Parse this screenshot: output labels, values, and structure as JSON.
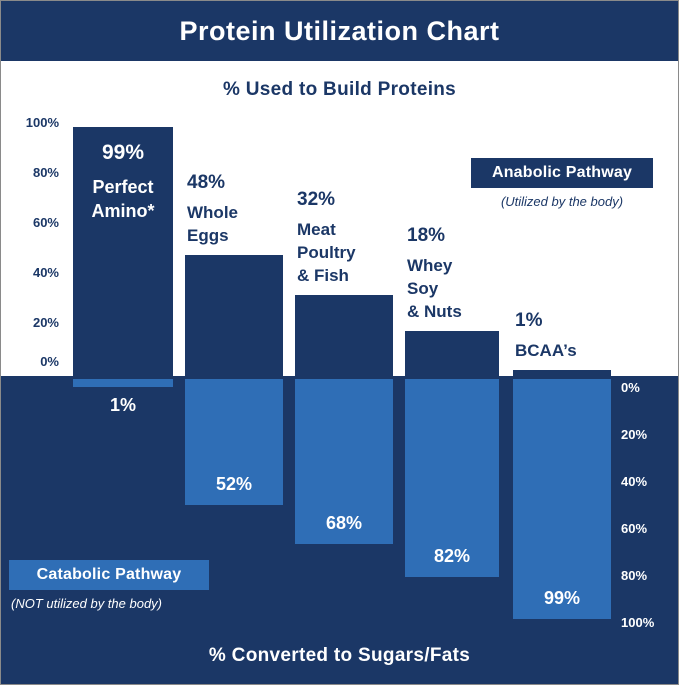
{
  "title": "Protein Utilization Chart",
  "upper_title": "% Used to Build Proteins",
  "lower_title": "% Converted to Sugars/Fats",
  "anabolic_badge": {
    "label": "Anabolic Pathway",
    "note": "(Utilized by the body)"
  },
  "catabolic_badge": {
    "label": "Catabolic Pathway",
    "note": "(NOT utilized by the body)"
  },
  "colors": {
    "navy": "#1b3766",
    "blue": "#2f6eb6",
    "white": "#ffffff"
  },
  "axes": {
    "upper_ticks": [
      "100%",
      "80%",
      "60%",
      "40%",
      "20%",
      "0%"
    ],
    "lower_ticks": [
      "0%",
      "20%",
      "40%",
      "60%",
      "80%",
      "100%"
    ]
  },
  "chart_data": {
    "type": "bar",
    "title": "Protein Utilization Chart",
    "categories": [
      "Perfect Amino*",
      "Whole Eggs",
      "Meat Poultry & Fish",
      "Whey Soy & Nuts",
      "BCAA’s"
    ],
    "series": [
      {
        "name": "Anabolic Pathway (% Used to Build Proteins)",
        "values": [
          99,
          48,
          32,
          18,
          1
        ]
      },
      {
        "name": "Catabolic Pathway (% Converted to Sugars/Fats)",
        "values": [
          1,
          52,
          68,
          82,
          99
        ]
      }
    ],
    "xlabel": "",
    "ylabel_upper": "% Used to Build Proteins",
    "ylabel_lower": "% Converted to Sugars/Fats",
    "ylim_upper": [
      0,
      100
    ],
    "ylim_lower": [
      0,
      100
    ],
    "grid": false,
    "legend": [
      "Anabolic Pathway (Utilized by the body)",
      "Catabolic Pathway (NOT utilized by the body)"
    ],
    "legend_position": "badges: anabolic upper-right, catabolic lower-left"
  },
  "items": [
    {
      "pct_up": "99%",
      "name_lines": [
        "Perfect",
        "Amino*"
      ],
      "pct_down": "1%"
    },
    {
      "pct_up": "48%",
      "name_lines": [
        "Whole",
        "Eggs"
      ],
      "pct_down": "52%"
    },
    {
      "pct_up": "32%",
      "name_lines": [
        "Meat",
        "Poultry",
        "& Fish"
      ],
      "pct_down": "68%"
    },
    {
      "pct_up": "18%",
      "name_lines": [
        "Whey",
        "Soy",
        "& Nuts"
      ],
      "pct_down": "82%"
    },
    {
      "pct_up": "1%",
      "name_lines": [
        "BCAA’s"
      ],
      "pct_down": "99%"
    }
  ]
}
